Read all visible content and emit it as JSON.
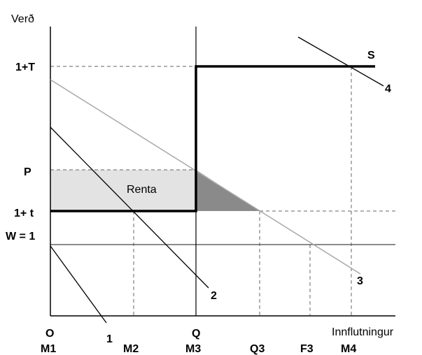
{
  "axes": {
    "y_title": "Verð",
    "x_title": "Innflutningur"
  },
  "y_levels": [
    {
      "key": "T",
      "label": "1+T"
    },
    {
      "key": "P",
      "label": "P"
    },
    {
      "key": "t",
      "label": "1+ t"
    },
    {
      "key": "W",
      "label": "W = 1"
    }
  ],
  "x_marks_top": [
    {
      "key": "O",
      "label": "O"
    },
    {
      "key": "Q",
      "label": "Q"
    }
  ],
  "x_marks": [
    {
      "key": "M1",
      "label": "M1"
    },
    {
      "key": "M2",
      "label": "M2"
    },
    {
      "key": "M3",
      "label": "M3"
    },
    {
      "key": "Q3",
      "label": "Q3"
    },
    {
      "key": "F3",
      "label": "F3"
    },
    {
      "key": "M4",
      "label": "M4"
    }
  ],
  "curves": [
    {
      "key": "1",
      "label": "1"
    },
    {
      "key": "2",
      "label": "2"
    },
    {
      "key": "3",
      "label": "3"
    },
    {
      "key": "4",
      "label": "4"
    },
    {
      "key": "S",
      "label": "S"
    }
  ],
  "regions": {
    "rent_label": "Renta"
  },
  "colors": {
    "rent_fill": "#e3e3e3",
    "triangle_fill": "#8a8a8a",
    "supply": "#000000",
    "curve3": "#a8a8a8",
    "curve_dark": "#000000",
    "guide": "#666666"
  }
}
